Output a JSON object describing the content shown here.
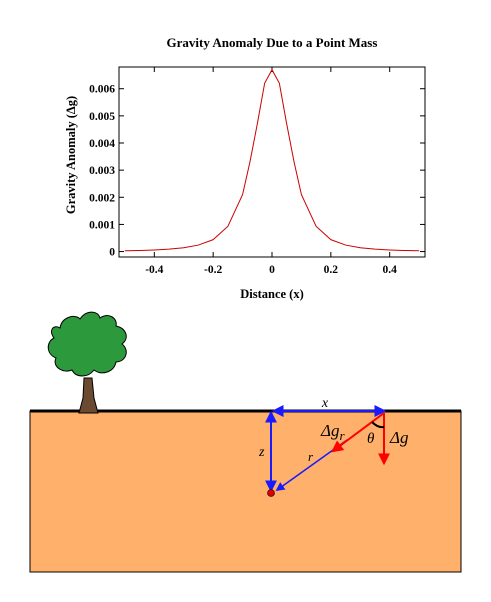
{
  "chart_data": {
    "type": "line",
    "title": "Gravity Anomaly Due to a Point Mass",
    "xlabel": "Distance (x)",
    "ylabel": "Gravity Anomaly (Δg)",
    "xlim": [
      -0.52,
      0.52
    ],
    "ylim": [
      -0.0002,
      0.0068
    ],
    "x_ticks": [
      -0.4,
      -0.2,
      0,
      0.2,
      0.4
    ],
    "x_tick_labels": [
      "-0.4",
      "-0.2",
      "0",
      "0.2",
      "0.4"
    ],
    "y_ticks": [
      0,
      0.001,
      0.002,
      0.003,
      0.004,
      0.005,
      0.006
    ],
    "y_tick_labels": [
      "0",
      "0.001",
      "0.002",
      "0.003",
      "0.004",
      "0.005",
      "0.006"
    ],
    "grid": false,
    "series": [
      {
        "color": "#cc0000",
        "x": [
          -0.5,
          -0.45,
          -0.4,
          -0.35,
          -0.3,
          -0.25,
          -0.2,
          -0.15,
          -0.1,
          -0.075,
          -0.05,
          -0.025,
          0,
          0.025,
          0.05,
          0.075,
          0.1,
          0.15,
          0.2,
          0.25,
          0.3,
          0.35,
          0.4,
          0.45,
          0.5
        ],
        "y": [
          3e-05,
          4e-05,
          6e-05,
          9e-05,
          0.00014,
          0.00024,
          0.00044,
          0.00093,
          0.0021,
          0.0033,
          0.0047,
          0.0062,
          0.0067,
          0.0062,
          0.0047,
          0.0033,
          0.0021,
          0.00093,
          0.00044,
          0.00024,
          0.00014,
          9e-05,
          6e-05,
          4e-05,
          3e-05
        ]
      }
    ]
  },
  "diagram": {
    "label_x": "x",
    "label_z": "z",
    "label_r": "r",
    "label_dgr": "Δg",
    "label_dgr_sub": "r",
    "label_theta": "θ",
    "label_dg": "Δg",
    "colors": {
      "ground": "#ffb06a",
      "surface": "#000000",
      "blue_arrow": "#1a1aff",
      "red_arrow": "#ff0000",
      "mass": "#dd0000",
      "tree_crown": "#2c9a3c",
      "tree_trunk": "#6b4a32"
    }
  }
}
